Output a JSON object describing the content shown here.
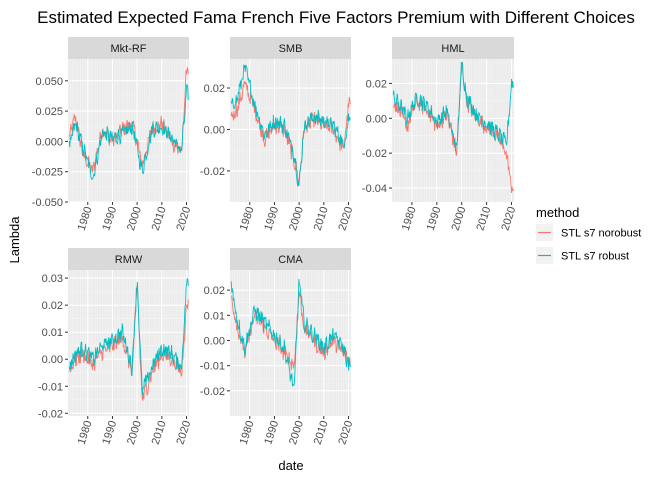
{
  "chart_data": {
    "type": "line",
    "title": "Estimated Expected Fama French Five Factors Premium with Different Choices",
    "xlabel": "date",
    "ylabel": "Lambda",
    "x_ticks": [
      "1980",
      "1990",
      "2000",
      "2010",
      "2020"
    ],
    "x_range": [
      1972,
      2021
    ],
    "grid": true,
    "legend": {
      "title": "method",
      "position": "right",
      "entries": [
        {
          "name": "STL s7 norobust",
          "color": "#F8766D"
        },
        {
          "name": "STL s7 robust",
          "color": "#00BFC4"
        }
      ]
    },
    "x_knots": [
      1972,
      1975,
      1978,
      1982,
      1986,
      1990,
      1994,
      1998,
      2000,
      2002,
      2006,
      2010,
      2014,
      2018,
      2020
    ],
    "panels": [
      {
        "name": "Mkt-RF",
        "ylim": [
          -0.05,
          0.068
        ],
        "y_ticks": [
          "0.050",
          "0.025",
          "0.000",
          "-0.025",
          "-0.050"
        ],
        "y_tick_values": [
          0.05,
          0.025,
          0.0,
          -0.025,
          -0.05
        ],
        "series": [
          {
            "name": "STL s7 norobust",
            "values": [
              0.0,
              0.02,
              -0.01,
              -0.025,
              0.01,
              0.0,
              0.01,
              0.015,
              0.0,
              -0.02,
              0.01,
              0.015,
              0.0,
              -0.01,
              0.06
            ]
          },
          {
            "name": "STL s7 robust",
            "values": [
              -0.01,
              0.015,
              -0.005,
              -0.03,
              0.008,
              0.002,
              0.006,
              0.012,
              -0.005,
              -0.025,
              0.01,
              0.012,
              0.003,
              -0.008,
              0.04
            ]
          }
        ]
      },
      {
        "name": "SMB",
        "ylim": [
          -0.035,
          0.034
        ],
        "y_ticks": [
          "0.02",
          "0.00",
          "-0.02"
        ],
        "y_tick_values": [
          0.02,
          0.0,
          -0.02
        ],
        "series": [
          {
            "name": "STL s7 norobust",
            "values": [
              0.005,
              0.01,
              0.022,
              0.01,
              -0.005,
              0.002,
              0.0,
              -0.015,
              -0.025,
              0.0,
              0.005,
              0.002,
              0.0,
              -0.01,
              0.012
            ]
          },
          {
            "name": "STL s7 robust",
            "values": [
              0.01,
              0.015,
              0.03,
              0.012,
              -0.003,
              0.004,
              0.002,
              -0.012,
              -0.028,
              0.002,
              0.006,
              0.004,
              0.002,
              -0.008,
              0.005
            ]
          }
        ]
      },
      {
        "name": "HML",
        "ylim": [
          -0.048,
          0.034
        ],
        "y_ticks": [
          "0.02",
          "0.00",
          "-0.02",
          "-0.04"
        ],
        "y_tick_values": [
          0.02,
          0.0,
          -0.02,
          -0.04
        ],
        "series": [
          {
            "name": "STL s7 norobust",
            "values": [
              0.01,
              0.005,
              -0.005,
              0.01,
              0.005,
              -0.005,
              0.002,
              -0.02,
              0.03,
              0.01,
              0.0,
              -0.005,
              -0.01,
              -0.02,
              -0.04
            ]
          },
          {
            "name": "STL s7 robust",
            "values": [
              0.012,
              0.008,
              0.0,
              0.012,
              0.007,
              -0.002,
              0.004,
              -0.018,
              0.032,
              0.012,
              0.002,
              -0.003,
              -0.008,
              -0.015,
              0.02
            ]
          }
        ]
      },
      {
        "name": "RMW",
        "ylim": [
          -0.021,
          0.033
        ],
        "y_ticks": [
          "0.03",
          "0.02",
          "0.01",
          "0.00",
          "-0.01",
          "-0.02"
        ],
        "y_tick_values": [
          0.03,
          0.02,
          0.01,
          0.0,
          -0.01,
          -0.02
        ],
        "series": [
          {
            "name": "STL s7 norobust",
            "values": [
              -0.005,
              0.0,
              0.002,
              -0.002,
              0.003,
              0.005,
              0.008,
              -0.005,
              0.028,
              -0.015,
              -0.005,
              0.002,
              0.0,
              -0.005,
              0.02
            ]
          },
          {
            "name": "STL s7 robust",
            "values": [
              -0.004,
              0.002,
              0.004,
              0.0,
              0.005,
              0.007,
              0.01,
              -0.003,
              0.03,
              -0.012,
              -0.003,
              0.004,
              0.002,
              -0.003,
              0.028
            ]
          }
        ]
      },
      {
        "name": "CMA",
        "ylim": [
          -0.03,
          0.028
        ],
        "y_ticks": [
          "0.02",
          "0.01",
          "0.00",
          "-0.01",
          "-0.02"
        ],
        "y_tick_values": [
          0.02,
          0.01,
          0.0,
          -0.01,
          -0.02
        ],
        "series": [
          {
            "name": "STL s7 norobust",
            "values": [
              0.02,
              0.005,
              -0.005,
              0.01,
              0.005,
              0.0,
              -0.005,
              -0.01,
              0.02,
              0.005,
              0.0,
              -0.005,
              0.0,
              -0.005,
              -0.008
            ]
          },
          {
            "name": "STL s7 robust",
            "values": [
              0.025,
              0.008,
              -0.003,
              0.012,
              0.007,
              0.002,
              -0.003,
              -0.02,
              0.024,
              0.007,
              0.002,
              -0.003,
              0.002,
              -0.003,
              -0.01
            ]
          }
        ]
      }
    ]
  }
}
